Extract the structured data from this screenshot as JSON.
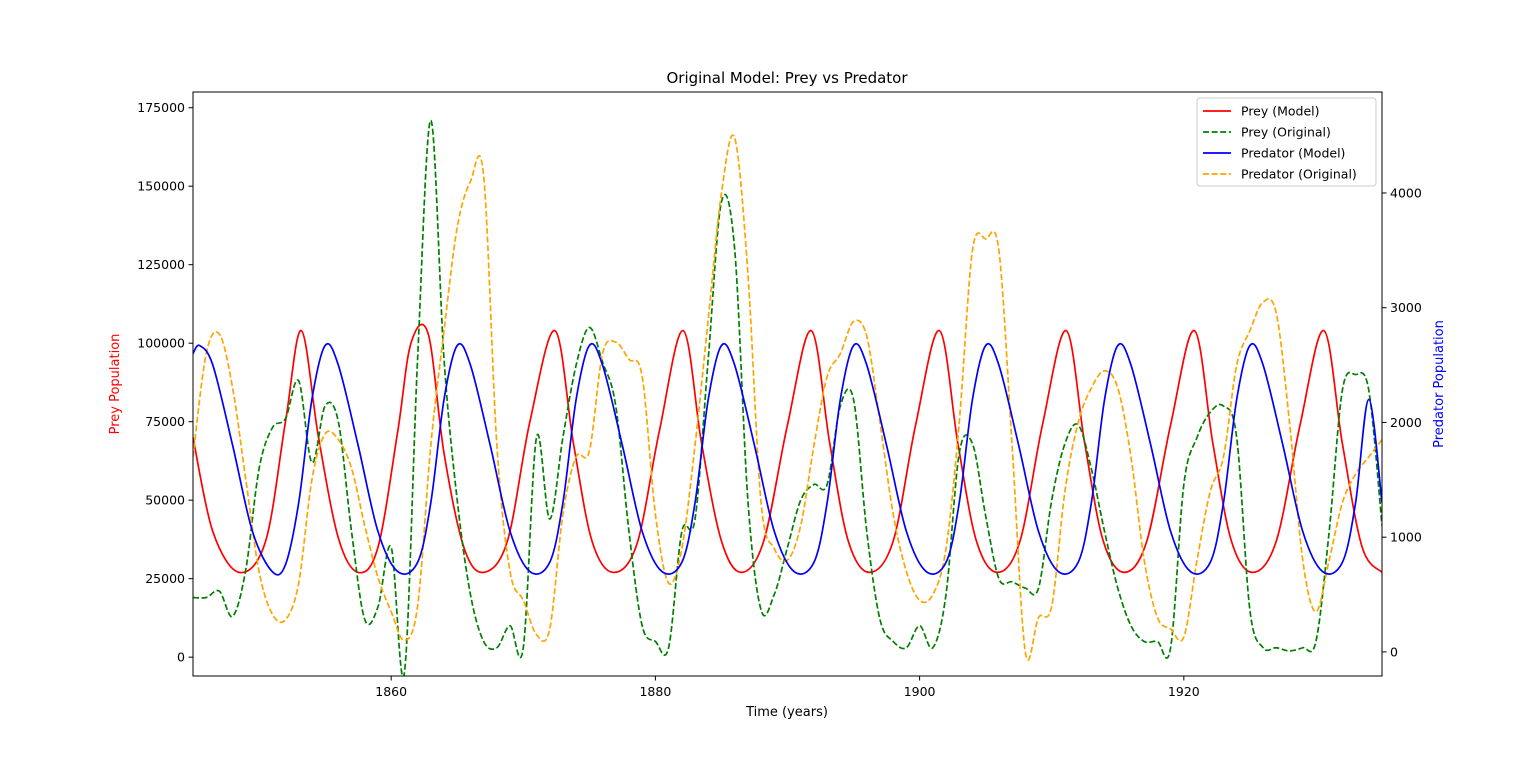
{
  "colors": {
    "prey_model": "#ff0000",
    "prey_original": "#008000",
    "predator_model": "#0000ff",
    "predator_original": "#ffa500",
    "left_axis_label": "#ff0000",
    "right_axis_label": "#0000ff"
  },
  "chart_data": {
    "type": "line",
    "title": "Original Model: Prey vs Predator",
    "xlabel": "Time (years)",
    "ylabel_left": "Prey Population",
    "ylabel_right": "Predator Population",
    "xlim": [
      1845,
      1935
    ],
    "ylim_left": [
      -6000,
      180000
    ],
    "ylim_right": [
      -210,
      4880
    ],
    "xticks": [
      1860,
      1880,
      1900,
      1920
    ],
    "yticks_left": [
      0,
      25000,
      50000,
      75000,
      100000,
      125000,
      150000,
      175000
    ],
    "yticks_right": [
      0,
      1000,
      2000,
      3000,
      4000
    ],
    "grid": false,
    "legend_position": "top-right",
    "series": [
      {
        "name": "Prey (Model)",
        "axis": "left",
        "style": "solid",
        "color": "#ff0000",
        "x": [
          1845,
          1846.5,
          1848.5,
          1850.5,
          1852,
          1853.2,
          1854.5,
          1856,
          1857.5,
          1859,
          1860.5,
          1861.5,
          1862.8,
          1864,
          1865.5,
          1867,
          1868.8,
          1870.5,
          1872.4,
          1873.8,
          1875.2,
          1876.8,
          1878.6,
          1880.3,
          1882.1,
          1883.5,
          1885,
          1886.5,
          1888.2,
          1890,
          1891.8,
          1893.2,
          1894.6,
          1896.2,
          1898,
          1899.7,
          1901.5,
          1902.9,
          1904.3,
          1905.9,
          1907.6,
          1909.3,
          1911.1,
          1912.5,
          1913.9,
          1915.5,
          1917.2,
          1919,
          1920.8,
          1922.2,
          1923.6,
          1925.2,
          1927,
          1928.8,
          1930.6,
          1932,
          1933.5,
          1935
        ],
        "y": [
          70000,
          40000,
          27000,
          37000,
          75000,
          104000,
          70000,
          38000,
          27000,
          35000,
          72000,
          100000,
          103000,
          65000,
          35000,
          27000,
          37000,
          75000,
          104000,
          68000,
          37000,
          27000,
          36000,
          72000,
          104000,
          68000,
          37000,
          27000,
          37000,
          74000,
          104000,
          68000,
          37000,
          27000,
          37000,
          74000,
          104000,
          68000,
          37000,
          27000,
          37000,
          74000,
          104000,
          68000,
          37000,
          27000,
          37000,
          74000,
          104000,
          68000,
          37000,
          27000,
          37000,
          74000,
          104000,
          68000,
          35000,
          27000
        ]
      },
      {
        "name": "Prey (Original)",
        "axis": "left",
        "style": "dashed",
        "color": "#008000",
        "x": [
          1845,
          1846,
          1847,
          1848,
          1849,
          1850,
          1851,
          1852,
          1853,
          1854,
          1855,
          1856,
          1857,
          1858,
          1859,
          1860,
          1861,
          1862,
          1863,
          1864,
          1865,
          1866,
          1867,
          1868,
          1869,
          1870,
          1871,
          1872,
          1873,
          1874,
          1875,
          1876,
          1877,
          1878,
          1879,
          1880,
          1881,
          1882,
          1883,
          1884,
          1885,
          1886,
          1887,
          1888,
          1889,
          1890,
          1891,
          1892,
          1893,
          1894,
          1895,
          1896,
          1897,
          1898,
          1899,
          1900,
          1901,
          1902,
          1903,
          1904,
          1905,
          1906,
          1907,
          1908,
          1909,
          1910,
          1911,
          1912,
          1913,
          1914,
          1915,
          1916,
          1917,
          1918,
          1919,
          1920,
          1921,
          1922,
          1923,
          1924,
          1925,
          1926,
          1927,
          1928,
          1929,
          1930,
          1931,
          1932,
          1933,
          1934,
          1935
        ],
        "y": [
          19000,
          19000,
          21000,
          13000,
          28000,
          60000,
          73000,
          76000,
          88000,
          62000,
          80000,
          75000,
          40000,
          12000,
          16000,
          35000,
          -5000,
          95000,
          171000,
          95000,
          50000,
          20000,
          5000,
          3000,
          10000,
          3000,
          70000,
          44000,
          70000,
          93000,
          105000,
          94000,
          80000,
          40000,
          10000,
          5000,
          3000,
          40000,
          44000,
          95000,
          145000,
          130000,
          50000,
          15000,
          20000,
          35000,
          50000,
          55000,
          55000,
          80000,
          82000,
          40000,
          12000,
          5000,
          3000,
          10000,
          3000,
          20000,
          65000,
          68000,
          45000,
          25000,
          24000,
          22000,
          22000,
          50000,
          68000,
          74000,
          60000,
          40000,
          22000,
          10000,
          5000,
          5000,
          3000,
          55000,
          70000,
          78000,
          80000,
          70000,
          15000,
          3000,
          3000,
          2000,
          3000,
          5000,
          40000,
          85000,
          90000,
          85000,
          42000
        ]
      },
      {
        "name": "Predator (Model)",
        "axis": "right",
        "style": "solid",
        "color": "#0000ff",
        "x": [
          1845,
          1845.5,
          1846.5,
          1848,
          1849.5,
          1851,
          1852,
          1853,
          1854,
          1855,
          1856,
          1857.5,
          1859,
          1860.5,
          1862,
          1863,
          1864,
          1865,
          1866,
          1867.5,
          1869,
          1870.5,
          1872,
          1873,
          1874,
          1875,
          1876,
          1877.5,
          1879,
          1880.5,
          1882,
          1883,
          1884,
          1885,
          1886,
          1887.5,
          1889,
          1890.5,
          1892,
          1893,
          1894,
          1895,
          1896,
          1897.5,
          1899,
          1900.5,
          1902,
          1903,
          1904,
          1905,
          1906,
          1907.5,
          1909,
          1910.5,
          1912,
          1913,
          1914,
          1915,
          1916,
          1917.5,
          1919,
          1920.5,
          1922,
          1923,
          1924,
          1925,
          1926,
          1927.5,
          1929,
          1930.5,
          1932,
          1933,
          1934,
          1935
        ],
        "y": [
          2600,
          2670,
          2500,
          1800,
          1050,
          700,
          760,
          1300,
          2200,
          2670,
          2500,
          1800,
          1050,
          700,
          780,
          1300,
          2200,
          2670,
          2500,
          1800,
          1050,
          700,
          780,
          1300,
          2200,
          2670,
          2500,
          1800,
          1050,
          700,
          780,
          1300,
          2200,
          2670,
          2500,
          1800,
          1050,
          700,
          780,
          1300,
          2200,
          2670,
          2500,
          1800,
          1050,
          700,
          780,
          1300,
          2200,
          2670,
          2500,
          1800,
          1050,
          700,
          780,
          1300,
          2200,
          2670,
          2500,
          1800,
          1050,
          700,
          780,
          1300,
          2200,
          2670,
          2500,
          1800,
          1050,
          700,
          780,
          1300,
          2200,
          1300
        ]
      },
      {
        "name": "Predator (Original)",
        "axis": "right",
        "style": "dashed",
        "color": "#ffa500",
        "x": [
          1845,
          1846,
          1847,
          1848,
          1849,
          1850,
          1851,
          1852,
          1853,
          1854,
          1855,
          1856,
          1857,
          1858,
          1859,
          1860,
          1861,
          1862,
          1863,
          1864,
          1865,
          1866,
          1867,
          1868,
          1869,
          1870,
          1871,
          1872,
          1873,
          1874,
          1875,
          1876,
          1877,
          1878,
          1879,
          1880,
          1881,
          1882,
          1883,
          1884,
          1885,
          1886,
          1887,
          1888,
          1889,
          1890,
          1891,
          1892,
          1893,
          1894,
          1895,
          1896,
          1897,
          1898,
          1899,
          1900,
          1901,
          1902,
          1903,
          1904,
          1905,
          1906,
          1907,
          1908,
          1909,
          1910,
          1911,
          1912,
          1913,
          1914,
          1915,
          1916,
          1917,
          1918,
          1919,
          1920,
          1921,
          1922,
          1923,
          1924,
          1925,
          1926,
          1927,
          1928,
          1929,
          1930,
          1931,
          1932,
          1933,
          1934,
          1935
        ],
        "y": [
          1700,
          2600,
          2770,
          2300,
          1500,
          700,
          330,
          280,
          600,
          1500,
          1900,
          1850,
          1600,
          1100,
          650,
          350,
          100,
          400,
          1800,
          2800,
          3700,
          4100,
          4150,
          1800,
          700,
          450,
          150,
          200,
          1200,
          1700,
          1750,
          2600,
          2700,
          2550,
          2400,
          1200,
          600,
          900,
          1800,
          2900,
          4000,
          4480,
          3300,
          1300,
          900,
          800,
          1100,
          1800,
          2400,
          2600,
          2880,
          2750,
          2000,
          1200,
          700,
          450,
          500,
          900,
          2000,
          3500,
          3600,
          3500,
          1800,
          0,
          300,
          400,
          1400,
          2000,
          2300,
          2450,
          2300,
          1700,
          800,
          300,
          200,
          130,
          800,
          1400,
          1700,
          2500,
          2800,
          3050,
          2950,
          2000,
          800,
          350,
          800,
          1300,
          1550,
          1700,
          1850
        ]
      }
    ]
  }
}
